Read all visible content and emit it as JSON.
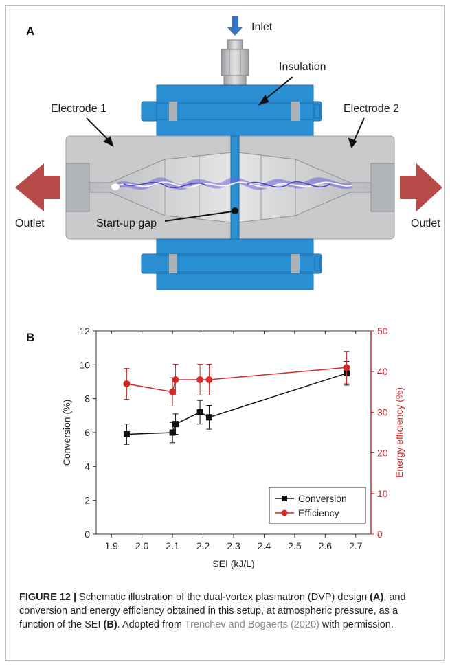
{
  "panel_a": {
    "letter": "A",
    "labels": {
      "inlet": "Inlet",
      "insulation": "Insulation",
      "electrode1": "Electrode 1",
      "electrode2": "Electrode 2",
      "outlet_left": "Outlet",
      "outlet_right": "Outlet",
      "startup_gap": "Start-up gap"
    },
    "colors": {
      "metal": "#c8cacc",
      "insulation": "#2b8fd4",
      "arrow_outlet": "#b84a4a",
      "arrow_inlet": "#3b74c2",
      "plasma": "#6f63d8"
    }
  },
  "panel_b": {
    "letter": "B",
    "chart_data": {
      "type": "line",
      "xlabel": "SEI (kJ/L)",
      "ylabel_left": "Conversion (%)",
      "ylabel_right": "Energy efficiency (%)",
      "xlim": [
        1.85,
        2.75
      ],
      "ylim_left": [
        0,
        12
      ],
      "ylim_right": [
        0,
        50
      ],
      "x_ticks": [
        "1.9",
        "2.0",
        "2.1",
        "2.2",
        "2.3",
        "2.4",
        "2.5",
        "2.6",
        "2.7"
      ],
      "y_left_ticks": [
        "0",
        "2",
        "4",
        "6",
        "8",
        "10",
        "12"
      ],
      "y_right_ticks": [
        "0",
        "10",
        "20",
        "30",
        "40",
        "50"
      ],
      "legend_position": "bottom-right",
      "series": [
        {
          "name": "Conversion",
          "axis": "left",
          "color": "#111111",
          "marker": "square",
          "x": [
            1.95,
            2.1,
            2.11,
            2.19,
            2.22,
            2.67
          ],
          "y": [
            5.9,
            6.0,
            6.5,
            7.2,
            6.9,
            9.5
          ],
          "err": [
            0.6,
            0.6,
            0.6,
            0.7,
            0.7,
            0.7
          ]
        },
        {
          "name": "Efficiency",
          "axis": "right",
          "color": "#d42a2a",
          "marker": "circle",
          "x": [
            1.95,
            2.1,
            2.11,
            2.19,
            2.22,
            2.67
          ],
          "y": [
            37,
            35,
            38,
            38,
            38,
            41
          ],
          "err": [
            3.8,
            3.5,
            3.8,
            3.8,
            3.8,
            4.0
          ]
        }
      ]
    }
  },
  "caption": {
    "label": "FIGURE 12 |",
    "text1": " Schematic illustration of the dual-vortex plasmatron (DVP) design ",
    "ref_a": "(A)",
    "text2": ", and conversion and energy efficiency obtained in this setup, at atmospheric pressure, as a function of the SEI ",
    "ref_b": "(B)",
    "text3": ". Adopted from ",
    "citation": "Trenchev and Bogaerts (2020)",
    "text4": " with permission."
  }
}
